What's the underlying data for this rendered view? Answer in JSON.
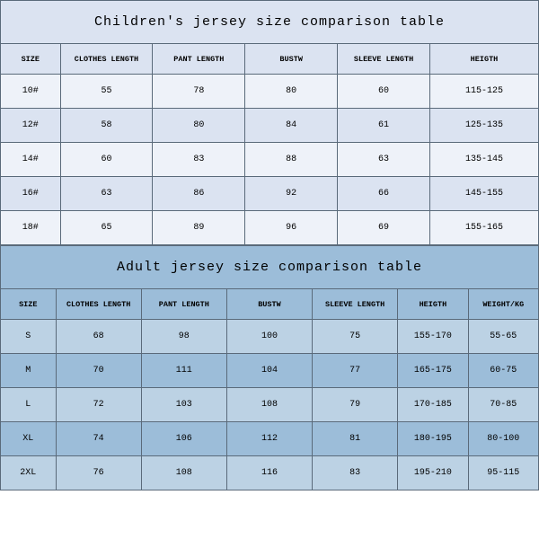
{
  "children": {
    "title": "Children's jersey size comparison table",
    "columns": [
      "SIZE",
      "CLOTHES LENGTH",
      "PANT LENGTH",
      "BUSTW",
      "SLEEVE LENGTH",
      "HEIGTH"
    ],
    "rows": [
      [
        "10#",
        "55",
        "78",
        "80",
        "60",
        "115-125"
      ],
      [
        "12#",
        "58",
        "80",
        "84",
        "61",
        "125-135"
      ],
      [
        "14#",
        "60",
        "83",
        "88",
        "63",
        "135-145"
      ],
      [
        "16#",
        "63",
        "86",
        "92",
        "66",
        "145-155"
      ],
      [
        "18#",
        "65",
        "89",
        "96",
        "69",
        "155-165"
      ]
    ],
    "colors": {
      "base": "#dbe3f1",
      "alt": "#eef2f9"
    }
  },
  "adult": {
    "title": "Adult jersey size comparison table",
    "columns": [
      "SIZE",
      "CLOTHES LENGTH",
      "PANT LENGTH",
      "BUSTW",
      "SLEEVE LENGTH",
      "HEIGTH",
      "WEIGHT/KG"
    ],
    "rows": [
      [
        "S",
        "68",
        "98",
        "100",
        "75",
        "155-170",
        "55-65"
      ],
      [
        "M",
        "70",
        "111",
        "104",
        "77",
        "165-175",
        "60-75"
      ],
      [
        "L",
        "72",
        "103",
        "108",
        "79",
        "170-185",
        "70-85"
      ],
      [
        "XL",
        "74",
        "106",
        "112",
        "81",
        "180-195",
        "80-100"
      ],
      [
        "2XL",
        "76",
        "108",
        "116",
        "83",
        "195-210",
        "95-115"
      ]
    ],
    "colors": {
      "base": "#9cbdd9",
      "alt": "#bcd2e4"
    }
  },
  "border_color": "#5a6a7a",
  "font_family": "Courier New, monospace"
}
